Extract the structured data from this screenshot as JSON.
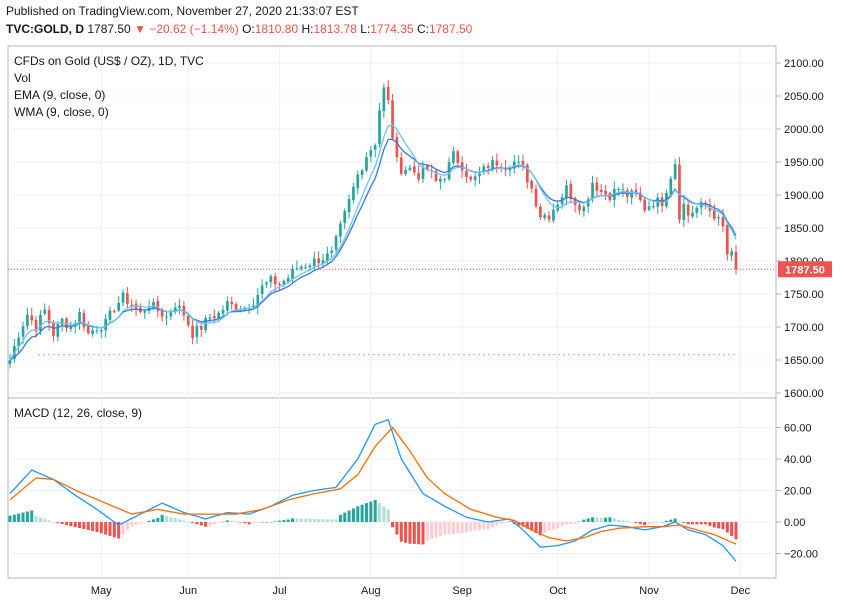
{
  "header": {
    "published": "Published on TradingView.com, November 27, 2020 21:33:07 EST",
    "symbol": "TVC:GOLD, D",
    "last": "1787.50",
    "arrow": "▼",
    "change": "−20.62 (−1.14%)",
    "o_label": "O:",
    "o_value": "1810.80",
    "h_label": "H:",
    "h_value": "1813.78",
    "l_label": "L:",
    "l_value": "1774.35",
    "c_label": "C:",
    "c_value": "1787.50"
  },
  "colors": {
    "up": "#26a69a",
    "down": "#ef5350",
    "ema": "#3a78d4",
    "wma": "#6ec3f0",
    "macd": "#2196f3",
    "signal": "#ff6d00",
    "hist_up_strong": "#26a69a",
    "hist_up_weak": "#b2dfdb",
    "hist_down_strong": "#ef5350",
    "hist_down_weak": "#ffcdd2"
  },
  "chart_data": [
    {
      "type": "candlestick",
      "title": "CFDs on Gold (US$ / OZ), 1D, TVC",
      "legend": [
        "Vol",
        "EMA (9, close, 0)",
        "WMA (9, close, 0)"
      ],
      "ylim": [
        1600,
        2100
      ],
      "yticks": [
        "2100.00",
        "2050.00",
        "2000.00",
        "1950.00",
        "1900.00",
        "1850.00",
        "1800.00",
        "1750.00",
        "1700.00",
        "1650.00",
        "1600.00"
      ],
      "last_price_label": "1787.50",
      "last_price": 1787.5,
      "x_ticks": [
        "May",
        "Jun",
        "Jul",
        "Aug",
        "Sep",
        "Oct",
        "Nov",
        "Dec"
      ],
      "x_tick_days": [
        21,
        41,
        62,
        83,
        104,
        126,
        147,
        168
      ],
      "start_date": "2020-04-15",
      "anchors": [
        [
          0,
          1650
        ],
        [
          2,
          1690
        ],
        [
          4,
          1720
        ],
        [
          6,
          1700
        ],
        [
          8,
          1725
        ],
        [
          10,
          1690
        ],
        [
          12,
          1710
        ],
        [
          14,
          1700
        ],
        [
          16,
          1720
        ],
        [
          18,
          1690
        ],
        [
          20,
          1700
        ],
        [
          22,
          1705
        ],
        [
          24,
          1730
        ],
        [
          26,
          1745
        ],
        [
          28,
          1735
        ],
        [
          30,
          1720
        ],
        [
          32,
          1735
        ],
        [
          34,
          1725
        ],
        [
          36,
          1715
        ],
        [
          38,
          1735
        ],
        [
          40,
          1720
        ],
        [
          42,
          1690
        ],
        [
          44,
          1700
        ],
        [
          46,
          1715
        ],
        [
          48,
          1720
        ],
        [
          50,
          1735
        ],
        [
          52,
          1730
        ],
        [
          54,
          1730
        ],
        [
          56,
          1740
        ],
        [
          58,
          1760
        ],
        [
          60,
          1770
        ],
        [
          62,
          1765
        ],
        [
          64,
          1775
        ],
        [
          66,
          1790
        ],
        [
          68,
          1795
        ],
        [
          70,
          1800
        ],
        [
          72,
          1805
        ],
        [
          74,
          1810
        ],
        [
          76,
          1850
        ],
        [
          78,
          1890
        ],
        [
          80,
          1930
        ],
        [
          82,
          1960
        ],
        [
          84,
          1980
        ],
        [
          85,
          2030
        ],
        [
          86,
          2060
        ],
        [
          87,
          2040
        ],
        [
          88,
          1990
        ],
        [
          89,
          1950
        ],
        [
          90,
          1940
        ],
        [
          92,
          1940
        ],
        [
          94,
          1930
        ],
        [
          96,
          1940
        ],
        [
          98,
          1920
        ],
        [
          100,
          1930
        ],
        [
          102,
          1960
        ],
        [
          104,
          1945
        ],
        [
          106,
          1920
        ],
        [
          108,
          1930
        ],
        [
          110,
          1945
        ],
        [
          112,
          1950
        ],
        [
          114,
          1945
        ],
        [
          116,
          1950
        ],
        [
          118,
          1940
        ],
        [
          120,
          1910
        ],
        [
          122,
          1870
        ],
        [
          124,
          1870
        ],
        [
          126,
          1890
        ],
        [
          128,
          1910
        ],
        [
          130,
          1890
        ],
        [
          132,
          1880
        ],
        [
          134,
          1920
        ],
        [
          136,
          1905
        ],
        [
          138,
          1900
        ],
        [
          140,
          1910
        ],
        [
          142,
          1900
        ],
        [
          144,
          1900
        ],
        [
          146,
          1880
        ],
        [
          148,
          1890
        ],
        [
          150,
          1890
        ],
        [
          152,
          1930
        ],
        [
          153,
          1950
        ],
        [
          154,
          1870
        ],
        [
          155,
          1885
        ],
        [
          156,
          1870
        ],
        [
          158,
          1880
        ],
        [
          160,
          1885
        ],
        [
          162,
          1870
        ],
        [
          164,
          1850
        ],
        [
          165,
          1810
        ],
        [
          166,
          1808
        ],
        [
          167,
          1787.5
        ]
      ],
      "dashed_level": 1658
    },
    {
      "type": "macd",
      "title": "MACD (12, 26, close, 9)",
      "ylim": [
        -35,
        73
      ],
      "yticks": [
        "60.00",
        "40.00",
        "20.00",
        "0.00",
        "−20.00"
      ],
      "macd_anchors": [
        [
          0,
          18
        ],
        [
          5,
          33
        ],
        [
          10,
          27
        ],
        [
          15,
          17
        ],
        [
          20,
          8
        ],
        [
          25,
          -2
        ],
        [
          30,
          5
        ],
        [
          35,
          12
        ],
        [
          40,
          6
        ],
        [
          45,
          2
        ],
        [
          50,
          6
        ],
        [
          55,
          5
        ],
        [
          60,
          10
        ],
        [
          65,
          17
        ],
        [
          70,
          20
        ],
        [
          75,
          22
        ],
        [
          80,
          40
        ],
        [
          84,
          62
        ],
        [
          87,
          65
        ],
        [
          90,
          40
        ],
        [
          95,
          18
        ],
        [
          100,
          10
        ],
        [
          105,
          3
        ],
        [
          110,
          0
        ],
        [
          115,
          2
        ],
        [
          118,
          -5
        ],
        [
          122,
          -16
        ],
        [
          126,
          -15
        ],
        [
          130,
          -12
        ],
        [
          134,
          -5
        ],
        [
          138,
          -2
        ],
        [
          142,
          -3
        ],
        [
          146,
          -5
        ],
        [
          150,
          -3
        ],
        [
          153,
          0
        ],
        [
          156,
          -5
        ],
        [
          160,
          -8
        ],
        [
          164,
          -15
        ],
        [
          167,
          -25
        ]
      ],
      "signal_anchors": [
        [
          0,
          14
        ],
        [
          6,
          28
        ],
        [
          10,
          27
        ],
        [
          16,
          19
        ],
        [
          22,
          12
        ],
        [
          28,
          5
        ],
        [
          34,
          8
        ],
        [
          40,
          5
        ],
        [
          46,
          5
        ],
        [
          52,
          5
        ],
        [
          58,
          8
        ],
        [
          64,
          14
        ],
        [
          70,
          18
        ],
        [
          76,
          21
        ],
        [
          80,
          30
        ],
        [
          84,
          48
        ],
        [
          88,
          60
        ],
        [
          92,
          45
        ],
        [
          96,
          28
        ],
        [
          100,
          18
        ],
        [
          106,
          8
        ],
        [
          112,
          3
        ],
        [
          116,
          1
        ],
        [
          120,
          -5
        ],
        [
          124,
          -10
        ],
        [
          128,
          -12
        ],
        [
          132,
          -10
        ],
        [
          136,
          -6
        ],
        [
          140,
          -4
        ],
        [
          146,
          -3
        ],
        [
          150,
          -3
        ],
        [
          154,
          -2
        ],
        [
          158,
          -5
        ],
        [
          162,
          -8
        ],
        [
          167,
          -14
        ]
      ]
    }
  ]
}
